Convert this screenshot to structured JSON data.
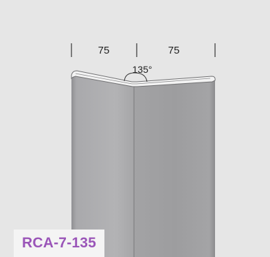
{
  "dimensions": {
    "left_width": "75",
    "right_width": "75",
    "angle": "135°"
  },
  "product": {
    "code": "RCA-7-135"
  },
  "colors": {
    "background": "#e6e6e6",
    "panel_light": "#b0b0b2",
    "panel_dark": "#9e9ea0",
    "label_box": "#f4f4f4",
    "code_text": "#9a55b8"
  }
}
